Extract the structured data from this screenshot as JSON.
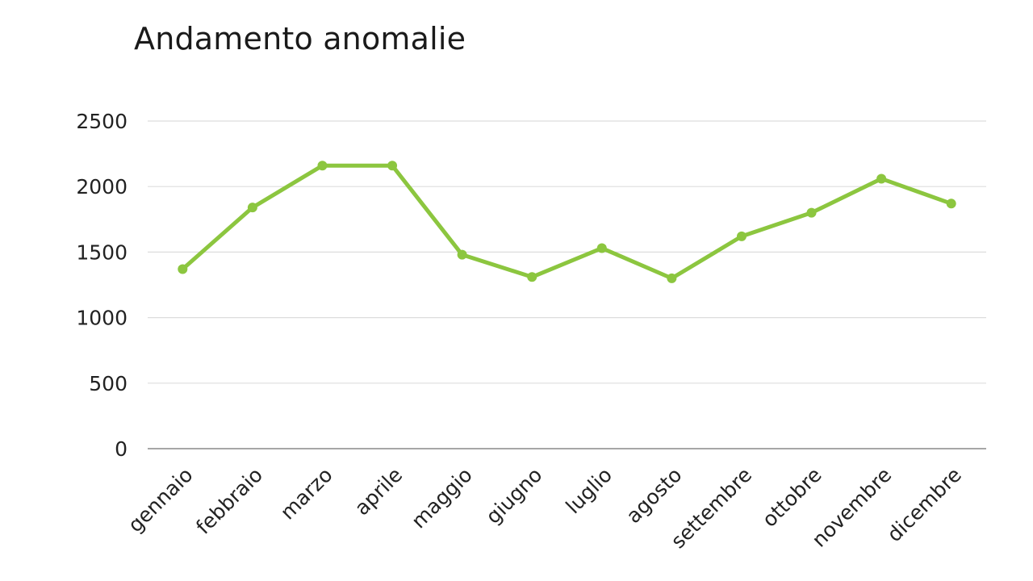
{
  "chart_data": {
    "type": "line",
    "title": "Andamento anomalie",
    "xlabel": "",
    "ylabel": "",
    "categories": [
      "gennaio",
      "febbraio",
      "marzo",
      "aprile",
      "maggio",
      "giugno",
      "luglio",
      "agosto",
      "settembre",
      "ottobre",
      "novembre",
      "dicembre"
    ],
    "series": [
      {
        "values": [
          1370,
          1840,
          2160,
          2160,
          1480,
          1310,
          1530,
          1300,
          1620,
          1800,
          2060,
          1870
        ],
        "color": "#8cc63f"
      }
    ],
    "ylim": [
      0,
      2500
    ],
    "yticks": [
      0,
      500,
      1000,
      1500,
      2000,
      2500
    ],
    "grid": true,
    "legend": "none"
  }
}
